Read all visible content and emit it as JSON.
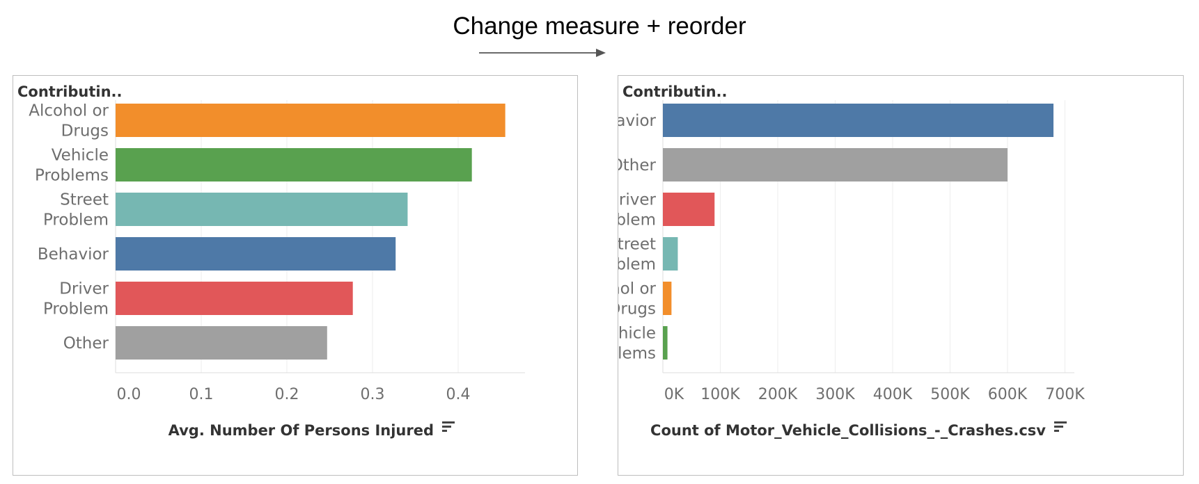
{
  "caption": "Change measure + reorder",
  "chart_data": [
    {
      "type": "bar",
      "orientation": "horizontal",
      "header": "Contributin..",
      "xlabel": "Avg. Number Of Persons Injured",
      "xlim": [
        0,
        0.48
      ],
      "ticks": [
        0,
        0.1,
        0.2,
        0.3,
        0.4
      ],
      "tick_labels": [
        "0.0",
        "0.1",
        "0.2",
        "0.3",
        "0.4"
      ],
      "grid": true,
      "categories": [
        {
          "label": [
            "Alcohol or",
            "Drugs"
          ],
          "value": 0.455,
          "color": "#f28e2b"
        },
        {
          "label": [
            "Vehicle",
            "Problems"
          ],
          "value": 0.416,
          "color": "#59a14f"
        },
        {
          "label": [
            "Street",
            "Problem"
          ],
          "value": 0.341,
          "color": "#76b7b2"
        },
        {
          "label": [
            "Behavior"
          ],
          "value": 0.327,
          "color": "#4e79a7"
        },
        {
          "label": [
            "Driver",
            "Problem"
          ],
          "value": 0.277,
          "color": "#e15759"
        },
        {
          "label": [
            "Other"
          ],
          "value": 0.247,
          "color": "#a0a0a0"
        }
      ]
    },
    {
      "type": "bar",
      "orientation": "horizontal",
      "header": "Contributin..",
      "xlabel": "Count of Motor_Vehicle_Collisions_-_Crashes.csv",
      "xlim": [
        0,
        720000
      ],
      "ticks": [
        0,
        100000,
        200000,
        300000,
        400000,
        500000,
        600000,
        700000
      ],
      "tick_labels": [
        "0K",
        "100K",
        "200K",
        "300K",
        "400K",
        "500K",
        "600K",
        "700K"
      ],
      "grid": true,
      "categories": [
        {
          "label": [
            "Behavior"
          ],
          "value": 680000,
          "color": "#4e79a7"
        },
        {
          "label": [
            "Other"
          ],
          "value": 600000,
          "color": "#a0a0a0"
        },
        {
          "label": [
            "Driver",
            "Problem"
          ],
          "value": 90000,
          "color": "#e15759"
        },
        {
          "label": [
            "Street",
            "Problem"
          ],
          "value": 26000,
          "color": "#76b7b2"
        },
        {
          "label": [
            "Alcohol or",
            "Drugs"
          ],
          "value": 15000,
          "color": "#f28e2b"
        },
        {
          "label": [
            "Vehicle",
            "Problems"
          ],
          "value": 8000,
          "color": "#59a14f"
        }
      ]
    }
  ]
}
